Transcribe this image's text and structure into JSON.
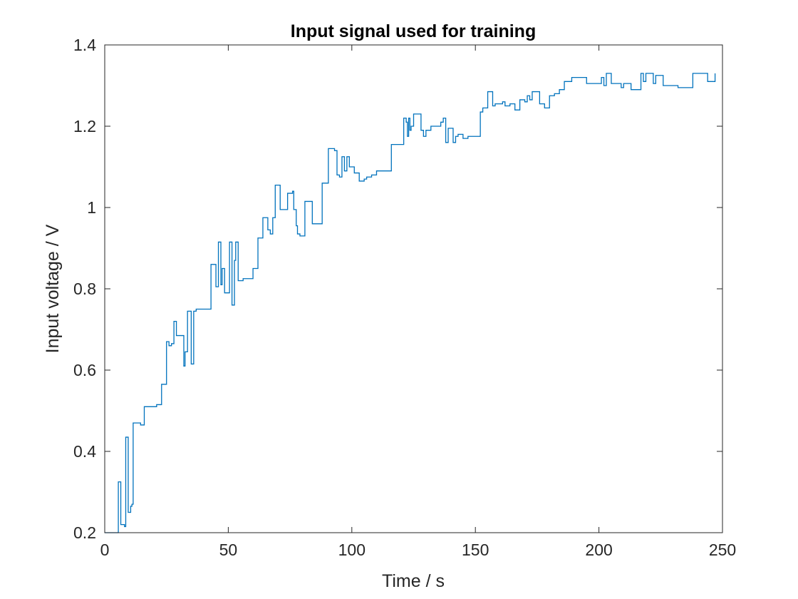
{
  "chart_data": {
    "type": "line",
    "title": "Input signal used for training",
    "xlabel": "Time / s",
    "ylabel": "Input voltage / V",
    "xlim": [
      0,
      250
    ],
    "ylim": [
      0.2,
      1.4
    ],
    "xticks": [
      0,
      50,
      100,
      150,
      200,
      250
    ],
    "yticks": [
      0.2,
      0.4,
      0.6,
      0.8,
      1.0,
      1.2,
      1.4
    ],
    "xtick_labels": [
      "0",
      "50",
      "100",
      "150",
      "200",
      "250"
    ],
    "ytick_labels": [
      "0.2",
      "0.4",
      "0.6",
      "0.8",
      "1",
      "1.2",
      "1.4"
    ],
    "grid": false,
    "line_style": "stairs",
    "series": [
      {
        "color": "#0072BD",
        "x": [
          0,
          4.5,
          5.5,
          6.5,
          8,
          8.5,
          9.5,
          10.5,
          11,
          11.5,
          13,
          14,
          14.5,
          16,
          21,
          22,
          23,
          25,
          26,
          27,
          28,
          29,
          32,
          32.5,
          33.5,
          35,
          36,
          37,
          41,
          43,
          45,
          46,
          47,
          47.5,
          48.5,
          50.5,
          51,
          51.5,
          52.5,
          53,
          54,
          56,
          60,
          62,
          63,
          64,
          66,
          67,
          68,
          69,
          71,
          74,
          76,
          76.5,
          77.5,
          78,
          79,
          81,
          82,
          84,
          85,
          88,
          90.5,
          93,
          94,
          95,
          96,
          97,
          98,
          99,
          101,
          103,
          105,
          106,
          108,
          110,
          112,
          116,
          121,
          122,
          122.5,
          123,
          123.5,
          124,
          125,
          128,
          129,
          130,
          132,
          136,
          137,
          138,
          139,
          141,
          142,
          143,
          144,
          145,
          147,
          152,
          153,
          155,
          157,
          158,
          159,
          161,
          162,
          164,
          166,
          168,
          170,
          171,
          172,
          173,
          176,
          178,
          180,
          182,
          184,
          186,
          189,
          195,
          201,
          202,
          203,
          204,
          205,
          209,
          210,
          213,
          217,
          218,
          219,
          222,
          223,
          226,
          230,
          231,
          232,
          238,
          239,
          241,
          244,
          247
        ],
        "y": [
          0.2,
          0.2,
          0.325,
          0.22,
          0.215,
          0.435,
          0.25,
          0.265,
          0.27,
          0.47,
          0.47,
          0.47,
          0.465,
          0.51,
          0.515,
          0.515,
          0.565,
          0.67,
          0.66,
          0.665,
          0.72,
          0.685,
          0.61,
          0.645,
          0.745,
          0.615,
          0.745,
          0.75,
          0.75,
          0.86,
          0.805,
          0.915,
          0.81,
          0.85,
          0.79,
          0.915,
          0.915,
          0.76,
          0.87,
          0.915,
          0.82,
          0.825,
          0.85,
          0.925,
          0.925,
          0.975,
          0.945,
          0.935,
          0.975,
          1.055,
          0.995,
          1.035,
          1.04,
          0.995,
          0.955,
          0.935,
          0.93,
          1.015,
          1.015,
          0.96,
          0.96,
          1.06,
          1.145,
          1.14,
          1.08,
          1.075,
          1.125,
          1.09,
          1.125,
          1.1,
          1.085,
          1.065,
          1.07,
          1.075,
          1.08,
          1.09,
          1.09,
          1.155,
          1.22,
          1.21,
          1.175,
          1.22,
          1.19,
          1.2,
          1.23,
          1.19,
          1.175,
          1.19,
          1.2,
          1.21,
          1.22,
          1.16,
          1.195,
          1.16,
          1.175,
          1.18,
          1.18,
          1.17,
          1.175,
          1.235,
          1.245,
          1.285,
          1.25,
          1.255,
          1.255,
          1.26,
          1.25,
          1.255,
          1.24,
          1.265,
          1.26,
          1.275,
          1.265,
          1.285,
          1.255,
          1.245,
          1.275,
          1.28,
          1.29,
          1.31,
          1.32,
          1.305,
          1.32,
          1.3,
          1.33,
          1.33,
          1.305,
          1.295,
          1.305,
          1.29,
          1.33,
          1.31,
          1.33,
          1.305,
          1.325,
          1.3,
          1.3,
          1.3,
          1.295,
          1.33,
          1.33,
          1.33,
          1.31,
          1.33
        ]
      }
    ]
  }
}
